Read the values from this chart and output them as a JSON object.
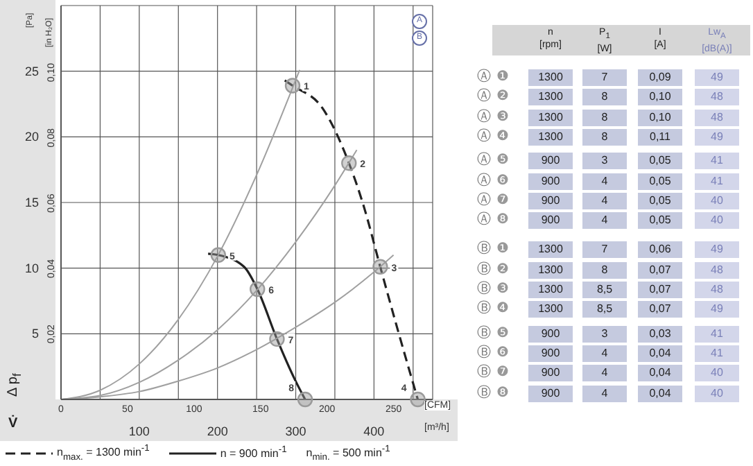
{
  "chart_data": [
    {
      "type": "line",
      "xlabel": "V̇",
      "ylabel": "Δ p$_{f}$",
      "xlim": [
        0,
        475
      ],
      "xticks": [
        {
          "value": 50,
          "label": null
        },
        100,
        {
          "value": 150,
          "label": null
        },
        200,
        {
          "value": 250,
          "label": null
        },
        300,
        {
          "value": 350,
          "label": null
        },
        400,
        {
          "value": 450,
          "label": null
        }
      ],
      "x2lim": [
        0,
        279.4
      ],
      "x2ticks": [
        0,
        50,
        100,
        150,
        200,
        250
      ],
      "x2label": "[CFM]",
      "ylim": [
        0,
        30
      ],
      "yticks": [
        {
          "value": 5,
          "label": "5"
        },
        10,
        15,
        20,
        25
      ],
      "y2lim": [
        0,
        0.1205
      ],
      "y2ticks": [
        {
          "value": 0.02,
          "label": "0,02"
        },
        {
          "value": 0.04,
          "label": "0,04"
        },
        {
          "value": 0.06,
          "label": "0,06"
        },
        {
          "value": 0.08,
          "label": "0,08"
        },
        {
          "value": 0.1,
          "label": "0,10"
        }
      ],
      "y2label": "[in H₂O]",
      "grid": true,
      "legend": "bottom",
      "marker": "none",
      "series": [
        {
          "name": "n$_{max.}$ = 1300 min$^{-1}$",
          "type": "line",
          "line_style": "dashed",
          "color": "#222222",
          "x": [
            286,
            296,
            334,
            368,
            387,
            408,
            428,
            456
          ],
          "values": [
            24.3,
            23.9,
            22.2,
            18.0,
            14.7,
            10.1,
            5.8,
            0
          ]
        },
        {
          "name": "n = 900 min$^{-1}$",
          "type": "line",
          "line_style": "solid",
          "color": "#222222",
          "x": [
            188,
            201,
            234,
            251,
            276,
            299,
            312
          ],
          "values": [
            11.1,
            11.0,
            10.1,
            8.4,
            4.6,
            1.5,
            0
          ]
        },
        {
          "type": "line",
          "line_style": "solid",
          "color": "#a0a0a0",
          "x": [
            0,
            50,
            100,
            150,
            200,
            250,
            305
          ],
          "values": [
            0,
            0.7,
            2.7,
            6.1,
            10.9,
            17.1,
            25.1
          ]
        },
        {
          "type": "line",
          "line_style": "solid",
          "color": "#a0a0a0",
          "x": [
            0,
            50,
            100,
            150,
            200,
            250,
            300,
            350,
            378
          ],
          "values": [
            0,
            0.3,
            1.3,
            3.0,
            5.3,
            8.3,
            12.0,
            16.3,
            19.0
          ]
        },
        {
          "type": "line",
          "line_style": "solid",
          "color": "#a0a0a0",
          "x": [
            0,
            50,
            100,
            150,
            200,
            250,
            300,
            350,
            400,
            425
          ],
          "values": [
            0,
            0.2,
            0.6,
            1.4,
            2.4,
            3.8,
            5.5,
            7.4,
            9.7,
            11.0
          ]
        },
        {
          "type": "scatter",
          "marker": "circle",
          "color": "#9a9a9a",
          "x": [
            296,
            368,
            408,
            456,
            201,
            251,
            276,
            312
          ],
          "values": [
            23.9,
            18.0,
            10.1,
            0,
            11.0,
            8.4,
            4.6,
            0
          ]
        }
      ],
      "annotations": [
        "A",
        "B",
        "n$_{min.}$ = 500 min$^{-1}$",
        "[Pa]",
        "[m³/h]",
        {
          "text": "1",
          "x": 296,
          "y": 23.9
        },
        {
          "text": "2",
          "x": 368,
          "y": 18.0
        },
        {
          "text": "3",
          "x": 408,
          "y": 10.1
        },
        {
          "text": "4",
          "x": 456,
          "y": 0
        },
        {
          "text": "5",
          "x": 201,
          "y": 11.0
        },
        {
          "text": "6",
          "x": 251,
          "y": 8.4
        },
        {
          "text": "7",
          "x": 276,
          "y": 4.6
        },
        {
          "text": "8",
          "x": 312,
          "y": 0
        }
      ]
    },
    {
      "type": "other",
      "categories": [
        "n\n[rpm]",
        "P$_{1}$\n[W]",
        "I\n[A]",
        "Lw$_{A}$\n[dB(A)]"
      ],
      "y_categories": [
        "Ⓐ ❶",
        "Ⓐ ❷",
        "Ⓐ ❸",
        "Ⓐ ❹",
        "Ⓐ ❺",
        "Ⓐ ❻",
        "Ⓐ ❼",
        "Ⓐ ❽",
        "Ⓑ ❶",
        "Ⓑ ❷",
        "Ⓑ ❸",
        "Ⓑ ❹",
        "Ⓑ ❺",
        "Ⓑ ❻",
        "Ⓑ ❼",
        "Ⓑ ❽"
      ],
      "cell_labels": [
        [
          "1300",
          "7",
          "0,09",
          "49"
        ],
        [
          "1300",
          "8",
          "0,10",
          "48"
        ],
        [
          "1300",
          "8",
          "0,10",
          "48"
        ],
        [
          "1300",
          "8",
          "0,11",
          "49"
        ],
        [
          "900",
          "3",
          "0,05",
          "41"
        ],
        [
          "900",
          "4",
          "0,05",
          "41"
        ],
        [
          "900",
          "4",
          "0,05",
          "40"
        ],
        [
          "900",
          "4",
          "0,05",
          "40"
        ],
        [
          "1300",
          "7",
          "0,06",
          "49"
        ],
        [
          "1300",
          "8",
          "0,07",
          "48"
        ],
        [
          "1300",
          "8,5",
          "0,07",
          "48"
        ],
        [
          "1300",
          "8,5",
          "0,07",
          "49"
        ],
        [
          "900",
          "3",
          "0,03",
          "41"
        ],
        [
          "900",
          "4",
          "0,04",
          "41"
        ],
        [
          "900",
          "4",
          "0,04",
          "40"
        ],
        [
          "900",
          "4",
          "0,04",
          "40"
        ]
      ]
    }
  ]
}
